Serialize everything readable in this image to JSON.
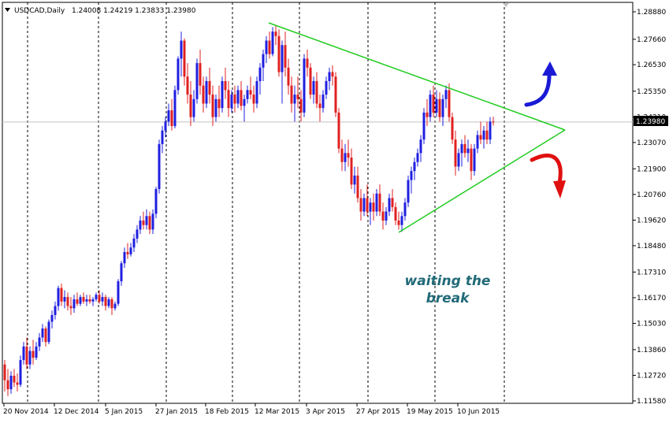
{
  "window": {
    "symbol_label": "USDCAD,Daily",
    "ohlc_label": "1.24008 1.24219 1.23833 1.23980",
    "menu_icon": "triangle-down-icon"
  },
  "chart_data": {
    "type": "candlestick",
    "symbol": "USDCAD",
    "timeframe": "Daily",
    "ohlc": {
      "open": 1.24008,
      "high": 1.24219,
      "low": 1.23833,
      "close": 1.2398
    },
    "current_price_label": "1.23980",
    "y_ticks": [
      1.2888,
      1.2766,
      1.2653,
      1.2535,
      1.2421,
      1.2307,
      1.219,
      1.2076,
      1.1962,
      1.1848,
      1.1731,
      1.1617,
      1.1503,
      1.1386,
      1.1272,
      1.1158
    ],
    "y_tick_labels": [
      "1.28880",
      "1.27660",
      "1.26530",
      "1.25350",
      "1.24210",
      "1.23070",
      "1.21900",
      "1.20760",
      "1.19620",
      "1.18480",
      "1.17310",
      "1.16170",
      "1.15030",
      "1.13860",
      "1.12720",
      "1.11580"
    ],
    "ylim": [
      1.1158,
      1.2888
    ],
    "x_tick_labels": [
      "20 Nov 2014",
      "12 Dec 2014",
      "5 Jan 2015",
      "27 Jan 2015",
      "18 Feb 2015",
      "12 Mar 2015",
      "3 Apr 2015",
      "27 Apr 2015",
      "19 May 2015",
      "10 Jun 2015"
    ],
    "candles": [
      [
        1.132,
        1.134,
        1.12,
        1.125
      ],
      [
        1.125,
        1.13,
        1.118,
        1.121
      ],
      [
        1.121,
        1.129,
        1.119,
        1.127
      ],
      [
        1.127,
        1.13,
        1.122,
        1.124
      ],
      [
        1.124,
        1.128,
        1.12,
        1.123
      ],
      [
        1.123,
        1.136,
        1.122,
        1.134
      ],
      [
        1.134,
        1.142,
        1.132,
        1.14
      ],
      [
        1.14,
        1.144,
        1.13,
        1.132
      ],
      [
        1.132,
        1.14,
        1.13,
        1.138
      ],
      [
        1.138,
        1.143,
        1.132,
        1.135
      ],
      [
        1.135,
        1.142,
        1.134,
        1.14
      ],
      [
        1.14,
        1.146,
        1.138,
        1.144
      ],
      [
        1.144,
        1.15,
        1.142,
        1.148
      ],
      [
        1.148,
        1.149,
        1.14,
        1.142
      ],
      [
        1.142,
        1.152,
        1.141,
        1.151
      ],
      [
        1.151,
        1.156,
        1.148,
        1.154
      ],
      [
        1.154,
        1.16,
        1.152,
        1.158
      ],
      [
        1.158,
        1.167,
        1.156,
        1.166
      ],
      [
        1.166,
        1.168,
        1.158,
        1.16
      ],
      [
        1.16,
        1.165,
        1.157,
        1.162
      ],
      [
        1.162,
        1.164,
        1.156,
        1.158
      ],
      [
        1.158,
        1.162,
        1.154,
        1.157
      ],
      [
        1.157,
        1.163,
        1.155,
        1.161
      ],
      [
        1.161,
        1.164,
        1.158,
        1.159
      ],
      [
        1.159,
        1.163,
        1.158,
        1.162
      ],
      [
        1.162,
        1.164,
        1.159,
        1.16
      ],
      [
        1.16,
        1.163,
        1.158,
        1.161
      ],
      [
        1.161,
        1.163,
        1.159,
        1.16
      ],
      [
        1.16,
        1.162,
        1.158,
        1.161
      ],
      [
        1.161,
        1.164,
        1.16,
        1.163
      ],
      [
        1.163,
        1.165,
        1.159,
        1.16
      ],
      [
        1.16,
        1.164,
        1.158,
        1.162
      ],
      [
        1.162,
        1.163,
        1.156,
        1.158
      ],
      [
        1.158,
        1.162,
        1.157,
        1.161
      ],
      [
        1.161,
        1.162,
        1.154,
        1.157
      ],
      [
        1.157,
        1.16,
        1.156,
        1.159
      ],
      [
        1.159,
        1.17,
        1.158,
        1.169
      ],
      [
        1.169,
        1.178,
        1.167,
        1.177
      ],
      [
        1.177,
        1.184,
        1.175,
        1.182
      ],
      [
        1.182,
        1.186,
        1.179,
        1.181
      ],
      [
        1.181,
        1.186,
        1.18,
        1.184
      ],
      [
        1.184,
        1.19,
        1.182,
        1.188
      ],
      [
        1.188,
        1.194,
        1.186,
        1.192
      ],
      [
        1.192,
        1.198,
        1.19,
        1.196
      ],
      [
        1.196,
        1.2,
        1.192,
        1.194
      ],
      [
        1.194,
        1.201,
        1.192,
        1.198
      ],
      [
        1.198,
        1.2,
        1.19,
        1.192
      ],
      [
        1.192,
        1.201,
        1.19,
        1.199
      ],
      [
        1.199,
        1.211,
        1.197,
        1.21
      ],
      [
        1.21,
        1.232,
        1.208,
        1.23
      ],
      [
        1.23,
        1.238,
        1.226,
        1.236
      ],
      [
        1.236,
        1.242,
        1.233,
        1.24
      ],
      [
        1.24,
        1.248,
        1.238,
        1.245
      ],
      [
        1.245,
        1.25,
        1.236,
        1.238
      ],
      [
        1.238,
        1.256,
        1.237,
        1.254
      ],
      [
        1.254,
        1.269,
        1.252,
        1.268
      ],
      [
        1.268,
        1.28,
        1.26,
        1.276
      ],
      [
        1.276,
        1.277,
        1.256,
        1.26
      ],
      [
        1.26,
        1.266,
        1.248,
        1.252
      ],
      [
        1.252,
        1.258,
        1.238,
        1.242
      ],
      [
        1.242,
        1.254,
        1.24,
        1.25
      ],
      [
        1.25,
        1.268,
        1.248,
        1.266
      ],
      [
        1.266,
        1.272,
        1.252,
        1.256
      ],
      [
        1.256,
        1.26,
        1.244,
        1.248
      ],
      [
        1.248,
        1.26,
        1.246,
        1.258
      ],
      [
        1.258,
        1.264,
        1.248,
        1.252
      ],
      [
        1.252,
        1.256,
        1.238,
        1.242
      ],
      [
        1.242,
        1.252,
        1.24,
        1.25
      ],
      [
        1.25,
        1.256,
        1.242,
        1.246
      ],
      [
        1.246,
        1.26,
        1.244,
        1.258
      ],
      [
        1.258,
        1.264,
        1.25,
        1.254
      ],
      [
        1.254,
        1.258,
        1.242,
        1.246
      ],
      [
        1.246,
        1.254,
        1.244,
        1.252
      ],
      [
        1.252,
        1.256,
        1.244,
        1.248
      ],
      [
        1.248,
        1.256,
        1.246,
        1.254
      ],
      [
        1.254,
        1.258,
        1.245,
        1.247
      ],
      [
        1.247,
        1.252,
        1.24,
        1.25
      ],
      [
        1.25,
        1.256,
        1.248,
        1.254
      ],
      [
        1.254,
        1.26,
        1.25,
        1.252
      ],
      [
        1.252,
        1.256,
        1.244,
        1.248
      ],
      [
        1.248,
        1.26,
        1.246,
        1.258
      ],
      [
        1.258,
        1.266,
        1.252,
        1.264
      ],
      [
        1.264,
        1.272,
        1.258,
        1.27
      ],
      [
        1.27,
        1.278,
        1.266,
        1.276
      ],
      [
        1.276,
        1.28,
        1.268,
        1.27
      ],
      [
        1.27,
        1.282,
        1.269,
        1.28
      ],
      [
        1.28,
        1.283,
        1.274,
        1.278
      ],
      [
        1.278,
        1.281,
        1.26,
        1.262
      ],
      [
        1.262,
        1.276,
        1.248,
        1.274
      ],
      [
        1.274,
        1.28,
        1.26,
        1.264
      ],
      [
        1.264,
        1.268,
        1.252,
        1.256
      ],
      [
        1.256,
        1.26,
        1.244,
        1.248
      ],
      [
        1.248,
        1.256,
        1.24,
        1.252
      ],
      [
        1.252,
        1.26,
        1.246,
        1.25
      ],
      [
        1.25,
        1.254,
        1.24,
        1.244
      ],
      [
        1.244,
        1.27,
        1.242,
        1.268
      ],
      [
        1.268,
        1.272,
        1.26,
        1.264
      ],
      [
        1.264,
        1.266,
        1.25,
        1.252
      ],
      [
        1.252,
        1.26,
        1.248,
        1.258
      ],
      [
        1.258,
        1.262,
        1.246,
        1.248
      ],
      [
        1.248,
        1.252,
        1.24,
        1.246
      ],
      [
        1.246,
        1.254,
        1.244,
        1.252
      ],
      [
        1.252,
        1.26,
        1.25,
        1.258
      ],
      [
        1.258,
        1.264,
        1.254,
        1.262
      ],
      [
        1.262,
        1.265,
        1.256,
        1.26
      ],
      [
        1.26,
        1.262,
        1.242,
        1.244
      ],
      [
        1.244,
        1.246,
        1.226,
        1.228
      ],
      [
        1.228,
        1.232,
        1.218,
        1.222
      ],
      [
        1.222,
        1.23,
        1.218,
        1.226
      ],
      [
        1.226,
        1.232,
        1.22,
        1.224
      ],
      [
        1.224,
        1.228,
        1.21,
        1.212
      ],
      [
        1.212,
        1.22,
        1.208,
        1.216
      ],
      [
        1.216,
        1.22,
        1.204,
        1.206
      ],
      [
        1.206,
        1.21,
        1.196,
        1.2
      ],
      [
        1.2,
        1.208,
        1.198,
        1.206
      ],
      [
        1.206,
        1.212,
        1.198,
        1.2
      ],
      [
        1.2,
        1.206,
        1.194,
        1.204
      ],
      [
        1.204,
        1.208,
        1.196,
        1.2
      ],
      [
        1.2,
        1.21,
        1.198,
        1.208
      ],
      [
        1.208,
        1.212,
        1.198,
        1.2
      ],
      [
        1.2,
        1.204,
        1.192,
        1.196
      ],
      [
        1.196,
        1.202,
        1.194,
        1.2
      ],
      [
        1.2,
        1.208,
        1.198,
        1.206
      ],
      [
        1.206,
        1.21,
        1.2,
        1.202
      ],
      [
        1.202,
        1.204,
        1.194,
        1.196
      ],
      [
        1.196,
        1.2,
        1.192,
        1.194
      ],
      [
        1.194,
        1.2,
        1.191,
        1.198
      ],
      [
        1.198,
        1.206,
        1.196,
        1.204
      ],
      [
        1.204,
        1.216,
        1.202,
        1.214
      ],
      [
        1.214,
        1.22,
        1.208,
        1.218
      ],
      [
        1.218,
        1.224,
        1.214,
        1.222
      ],
      [
        1.222,
        1.228,
        1.22,
        1.226
      ],
      [
        1.226,
        1.234,
        1.222,
        1.232
      ],
      [
        1.232,
        1.246,
        1.23,
        1.244
      ],
      [
        1.244,
        1.25,
        1.238,
        1.242
      ],
      [
        1.242,
        1.254,
        1.24,
        1.252
      ],
      [
        1.252,
        1.256,
        1.242,
        1.244
      ],
      [
        1.244,
        1.254,
        1.242,
        1.25
      ],
      [
        1.25,
        1.253,
        1.24,
        1.242
      ],
      [
        1.242,
        1.252,
        1.238,
        1.25
      ],
      [
        1.25,
        1.256,
        1.246,
        1.254
      ],
      [
        1.254,
        1.257,
        1.24,
        1.242
      ],
      [
        1.242,
        1.244,
        1.23,
        1.232
      ],
      [
        1.232,
        1.236,
        1.216,
        1.22
      ],
      [
        1.22,
        1.228,
        1.218,
        1.226
      ],
      [
        1.226,
        1.232,
        1.22,
        1.23
      ],
      [
        1.23,
        1.234,
        1.224,
        1.226
      ],
      [
        1.226,
        1.232,
        1.222,
        1.228
      ],
      [
        1.228,
        1.23,
        1.214,
        1.218
      ],
      [
        1.218,
        1.23,
        1.216,
        1.228
      ],
      [
        1.228,
        1.236,
        1.226,
        1.234
      ],
      [
        1.234,
        1.24,
        1.23,
        1.232
      ],
      [
        1.232,
        1.238,
        1.228,
        1.236
      ],
      [
        1.236,
        1.24,
        1.23,
        1.232
      ],
      [
        1.232,
        1.242,
        1.23,
        1.24
      ],
      [
        1.24,
        1.2422,
        1.2383,
        1.2398
      ]
    ],
    "trendlines": [
      {
        "name": "upper-resistance",
        "from": {
          "x": "12 Mar 2015",
          "y": 1.284
        },
        "to": {
          "x": "apex",
          "y": 1.234
        },
        "color": "#22cc22"
      },
      {
        "name": "lower-support",
        "from": {
          "x": "8 May 2015",
          "y": 1.19
        },
        "to": {
          "x": "apex",
          "y": 1.234
        },
        "color": "#22cc22"
      }
    ],
    "annotation": {
      "line1": "waiting the",
      "line2": "break",
      "color": "#206a77"
    },
    "arrows": [
      {
        "name": "breakout-up",
        "color": "#1a1ad6",
        "direction": "up"
      },
      {
        "name": "breakout-down",
        "color": "#e01010",
        "direction": "down"
      }
    ],
    "colors": {
      "bull": "#1f1fe0",
      "bear": "#e02020",
      "trendline": "#22cc22",
      "grid": "#000000",
      "price_line": "#c0c0c0",
      "price_label_bg": "#000000",
      "price_label_text": "#ffffff"
    }
  }
}
